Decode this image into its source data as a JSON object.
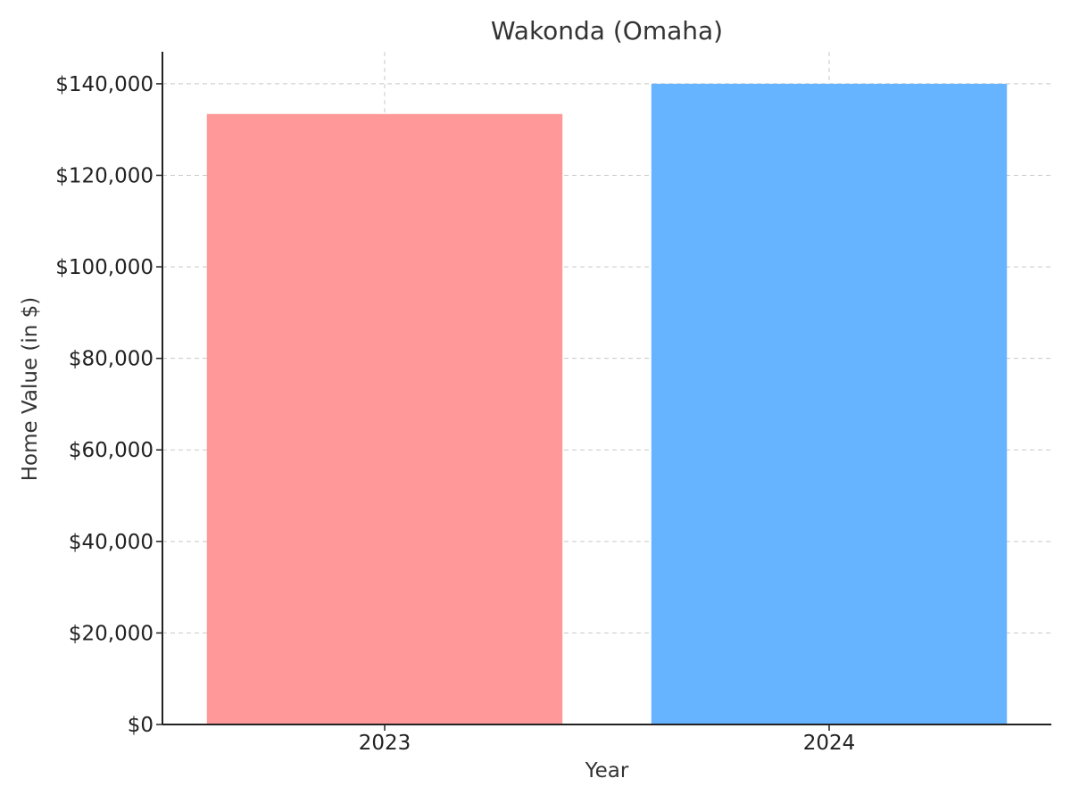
{
  "chart_data": {
    "type": "bar",
    "title": "Wakonda (Omaha)",
    "xlabel": "Year",
    "ylabel": "Home Value (in $)",
    "categories": [
      "2023",
      "2024"
    ],
    "values": [
      133400,
      140000
    ],
    "colors": [
      "#ff9999",
      "#66b3ff"
    ],
    "ylim": [
      0,
      147000
    ],
    "yticks": [
      0,
      20000,
      40000,
      60000,
      80000,
      100000,
      120000,
      140000
    ],
    "ytick_labels": [
      "$0",
      "$20,000",
      "$40,000",
      "$60,000",
      "$80,000",
      "$100,000",
      "$120,000",
      "$140,000"
    ],
    "grid": true,
    "legend": "none"
  }
}
